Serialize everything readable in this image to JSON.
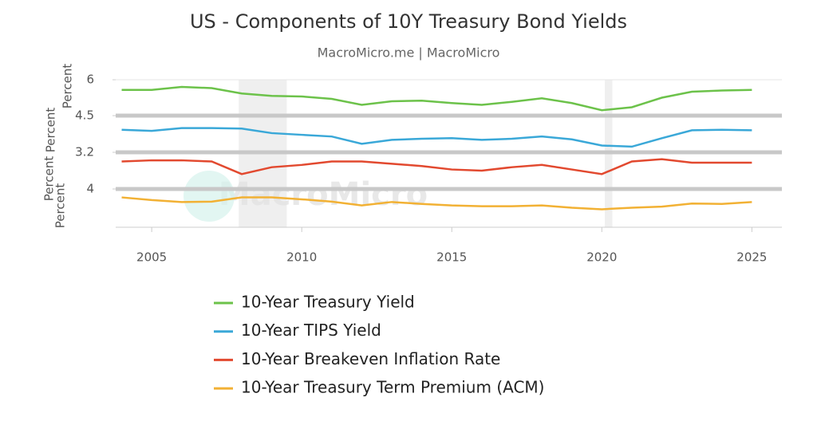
{
  "chart_data": {
    "type": "line",
    "title": "US - Components of 10Y Treasury Bond Yields",
    "subtitle": "MacroMicro.me | MacroMicro",
    "watermark": "MacroMicro",
    "x": [
      2004,
      2005,
      2006,
      2007,
      2008,
      2009,
      2010,
      2011,
      2012,
      2013,
      2014,
      2015,
      2016,
      2017,
      2018,
      2019,
      2020,
      2021,
      2022,
      2023,
      2024,
      2025
    ],
    "xlim": [
      2003.8,
      2026
    ],
    "xticks": [
      2005,
      2010,
      2015,
      2020,
      2025
    ],
    "recessions": [
      [
        2007.9,
        2009.5
      ],
      [
        2020.1,
        2020.35
      ]
    ],
    "series": [
      {
        "name": "10-Year Treasury Yield",
        "color": "#6cc24a",
        "y_label": "Percent",
        "ylim": [
          0,
          6
        ],
        "yticks": [
          6
        ],
        "values": [
          4.3,
          4.3,
          4.8,
          4.6,
          3.7,
          3.3,
          3.2,
          2.8,
          1.8,
          2.4,
          2.5,
          2.1,
          1.8,
          2.3,
          2.9,
          2.1,
          0.9,
          1.4,
          3.0,
          4.0,
          4.2,
          4.3
        ]
      },
      {
        "name": "10-Year TIPS Yield",
        "color": "#3aa8d8",
        "y_label": "Percent",
        "ylim": [
          -2,
          4.5
        ],
        "yticks": [
          4.5
        ],
        "values": [
          2.0,
          1.8,
          2.3,
          2.3,
          2.2,
          1.4,
          1.1,
          0.8,
          -0.5,
          0.2,
          0.4,
          0.5,
          0.2,
          0.4,
          0.8,
          0.3,
          -0.8,
          -1.0,
          0.5,
          1.9,
          2.0,
          1.9
        ]
      },
      {
        "name": "10-Year Breakeven Inflation Rate",
        "color": "#e2492f",
        "y_label": "Percent",
        "ylim": [
          0,
          3.2
        ],
        "yticks": [
          3.2
        ],
        "values": [
          2.4,
          2.5,
          2.5,
          2.4,
          1.3,
          1.9,
          2.1,
          2.4,
          2.4,
          2.2,
          2.0,
          1.7,
          1.6,
          1.9,
          2.1,
          1.7,
          1.3,
          2.4,
          2.6,
          2.3,
          2.3,
          2.3
        ]
      },
      {
        "name": "10-Year Treasury Term Premium (ACM)",
        "color": "#f2b134",
        "y_label": "Percent",
        "ylim": [
          -6,
          4
        ],
        "yticks": [
          4
        ],
        "values": [
          1.8,
          1.1,
          0.6,
          0.7,
          1.8,
          1.8,
          1.3,
          0.7,
          -0.3,
          0.6,
          0.1,
          -0.3,
          -0.5,
          -0.5,
          -0.3,
          -0.9,
          -1.3,
          -0.9,
          -0.6,
          0.2,
          0.1,
          0.6
        ]
      }
    ]
  }
}
